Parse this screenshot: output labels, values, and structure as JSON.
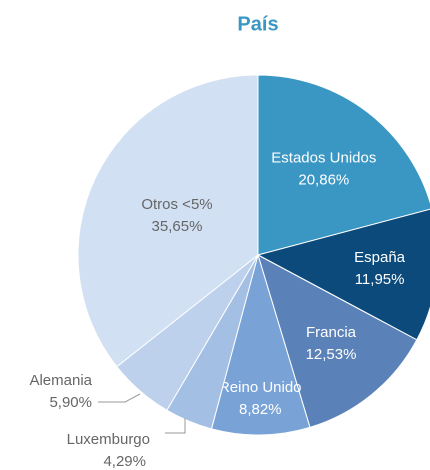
{
  "chart_data": {
    "type": "pie",
    "title": "País",
    "categories": [
      "Estados Unidos",
      "España",
      "Francia",
      "Reino Unido",
      "Luxemburgo",
      "Alemania",
      "Otros <5%"
    ],
    "values": [
      20.86,
      11.95,
      12.53,
      8.82,
      4.29,
      5.9,
      35.65
    ],
    "value_labels": [
      "20,86%",
      "11,95%",
      "12,53%",
      "8,82%",
      "4,29%",
      "5,90%",
      "35,65%"
    ],
    "colors": [
      "#3a97c4",
      "#0b4a7b",
      "#5b82b8",
      "#79a3d6",
      "#a4bfe4",
      "#bdd0ec",
      "#d1e0f3"
    ]
  }
}
